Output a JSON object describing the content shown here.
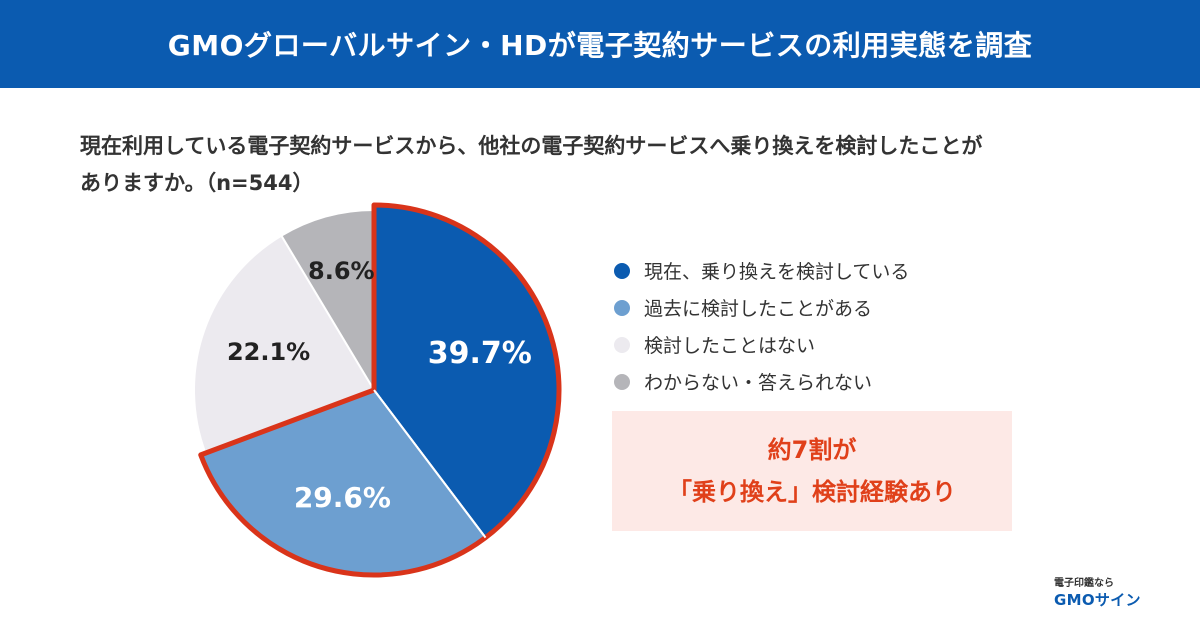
{
  "banner": {
    "title": "GMOグローバルサイン・HDが電子契約サービスの利用実態を調査"
  },
  "question": {
    "line1": "現在利用している電子契約サービスから、他社の電子契約サービスへ乗り換えを検討したことが",
    "line2": "ありますか。（n=544）"
  },
  "colors": {
    "banner": "#0b5bb0",
    "highlight_outline": "#d9341a",
    "callout_bg": "#fde9e6",
    "callout_text": "#e0401a"
  },
  "chart_data": {
    "type": "pie",
    "n": 544,
    "title": "",
    "slices": [
      {
        "label": "現在、乗り換えを検討している",
        "value": 39.7,
        "display": "39.7%",
        "color": "#0b5bb0",
        "text_color": "#ffffff",
        "highlighted": true
      },
      {
        "label": "過去に検討したことがある",
        "value": 29.6,
        "display": "29.6%",
        "color": "#6d9fd0",
        "text_color": "#ffffff",
        "highlighted": true
      },
      {
        "label": "検討したことはない",
        "value": 22.1,
        "display": "22.1%",
        "color": "#eceaef",
        "text_color": "#222222",
        "highlighted": false
      },
      {
        "label": "わからない・答えられない",
        "value": 8.6,
        "display": "8.6%",
        "color": "#b5b5b9",
        "text_color": "#222222",
        "highlighted": false
      }
    ]
  },
  "callout": {
    "line1": "約7割が",
    "line2": "「乗り換え」検討経験あり"
  },
  "brand": {
    "tagline": "電子印鑑なら",
    "logo": "GMOサイン"
  }
}
